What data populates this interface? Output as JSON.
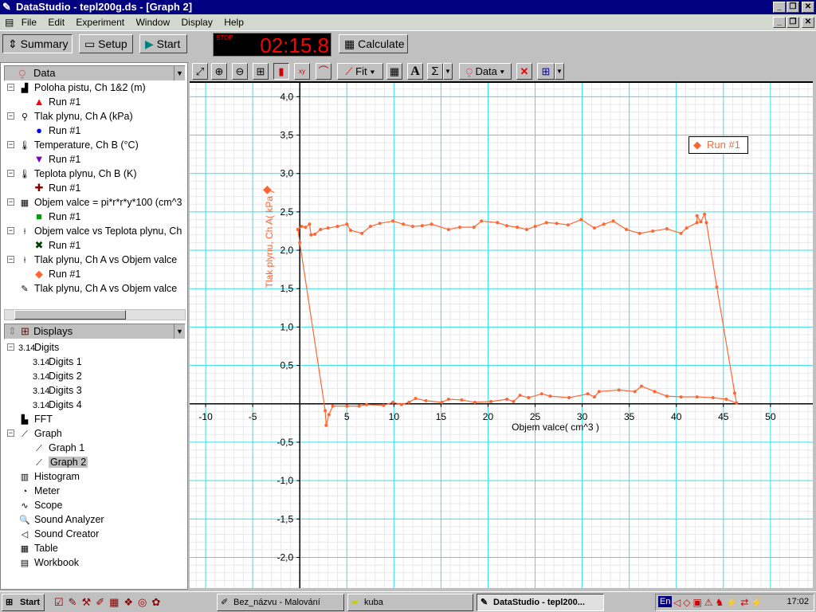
{
  "window": {
    "title": "DataStudio - tepl200g.ds - [Graph 2]",
    "min": "_",
    "restore": "❐",
    "close": "✕"
  },
  "menu": [
    "File",
    "Edit",
    "Experiment",
    "Window",
    "Display",
    "Help"
  ],
  "toolbar": {
    "summary": "Summary",
    "setup": "Setup",
    "start": "Start",
    "stop_label": "STOP",
    "timer": "02:15.8",
    "calculate": "Calculate"
  },
  "data_panel": {
    "header": "Data",
    "items": [
      {
        "label": "Poloha pistu, Ch 1&2 (m)",
        "run": "Run #1",
        "run_color": "#ff0000",
        "marker": "triangle"
      },
      {
        "label": "Tlak plynu, Ch A (kPa)",
        "run": "Run #1",
        "run_color": "#0000ff",
        "marker": "circle"
      },
      {
        "label": "Temperature, Ch B (°C)",
        "run": "Run #1",
        "run_color": "#8000c0",
        "marker": "triangle-down"
      },
      {
        "label": "Teplota plynu, Ch B (K)",
        "run": "Run #1",
        "run_color": "#800000",
        "marker": "plus"
      },
      {
        "label": "Objem valce = pi*r*r*y*100 (cm^3",
        "run": "Run #1",
        "run_color": "#00a000",
        "marker": "square"
      },
      {
        "label": "Objem valce vs Teplota plynu, Ch",
        "run": "Run #1",
        "run_color": "#004000",
        "marker": "x"
      },
      {
        "label": "Tlak plynu, Ch A vs Objem valce",
        "run": "Run #1",
        "run_color": "#ff6633",
        "marker": "diamond"
      },
      {
        "label": "Tlak plynu, Ch A vs Objem valce"
      }
    ]
  },
  "displays_panel": {
    "header": "Displays",
    "digits": "Digits",
    "digits_children": [
      "Digits 1",
      "Digits 2",
      "Digits 3",
      "Digits 4"
    ],
    "fft": "FFT",
    "graph": "Graph",
    "graph_children": [
      "Graph 1",
      "Graph 2"
    ],
    "selected": "Graph 2",
    "others": [
      "Histogram",
      "Meter",
      "Scope",
      "Sound Analyzer",
      "Sound Creator",
      "Table",
      "Workbook"
    ]
  },
  "graph_toolbar": {
    "fit": "Fit",
    "data": "Data",
    "sigma": "Σ",
    "text": "A"
  },
  "legend": {
    "label": "Run #1"
  },
  "chart_data": {
    "type": "scatter-line",
    "xlabel": "Objem valce( cm^3 )",
    "ylabel": "Tlak plynu, Ch A( kPa )",
    "xlim": [
      -11.7,
      54.5
    ],
    "ylim": [
      -2.4,
      4.18
    ],
    "xticks": [
      -10,
      -5,
      5,
      10,
      15,
      20,
      25,
      30,
      35,
      40,
      45,
      50
    ],
    "yticks": [
      "4,0",
      "3,5",
      "3,0",
      "2,5",
      "2,0",
      "1,5",
      "1,0",
      "0,5",
      "-0,5",
      "-1,0",
      "-1,5",
      "-2,0"
    ],
    "ytick_values": [
      4,
      3.5,
      3,
      2.5,
      2,
      1.5,
      1,
      0.5,
      -0.5,
      -1,
      -1.5,
      -2
    ],
    "grid": true,
    "legend_position": "top-right",
    "series": [
      {
        "name": "Run #1",
        "color": "#ff6633",
        "points": [
          [
            -0.2,
            2.27
          ],
          [
            0.2,
            2.31
          ],
          [
            0.6,
            2.3
          ],
          [
            1.04,
            2.34
          ],
          [
            1.2,
            2.2
          ],
          [
            1.6,
            2.21
          ],
          [
            2.2,
            2.27
          ],
          [
            3,
            2.29
          ],
          [
            4,
            2.31
          ],
          [
            5,
            2.34
          ],
          [
            5.4,
            2.26
          ],
          [
            6.6,
            2.22
          ],
          [
            7.5,
            2.31
          ],
          [
            8.5,
            2.35
          ],
          [
            9.9,
            2.38
          ],
          [
            11,
            2.34
          ],
          [
            12,
            2.31
          ],
          [
            13,
            2.32
          ],
          [
            14,
            2.34
          ],
          [
            15.8,
            2.27
          ],
          [
            17,
            2.3
          ],
          [
            18.5,
            2.3
          ],
          [
            19.3,
            2.38
          ],
          [
            21,
            2.36
          ],
          [
            22,
            2.32
          ],
          [
            23.1,
            2.3
          ],
          [
            24.1,
            2.27
          ],
          [
            25,
            2.31
          ],
          [
            26.2,
            2.36
          ],
          [
            27.3,
            2.35
          ],
          [
            28.5,
            2.33
          ],
          [
            29.9,
            2.4
          ],
          [
            31.3,
            2.29
          ],
          [
            32.3,
            2.34
          ],
          [
            33.3,
            2.38
          ],
          [
            34.7,
            2.27
          ],
          [
            36.1,
            2.22
          ],
          [
            37.5,
            2.25
          ],
          [
            39,
            2.28
          ],
          [
            40.5,
            2.22
          ],
          [
            41.1,
            2.29
          ],
          [
            42.2,
            2.36
          ],
          [
            42.2,
            2.45
          ],
          [
            42.6,
            2.37
          ],
          [
            43,
            2.47
          ],
          [
            43.2,
            2.36
          ],
          [
            44.3,
            1.52
          ],
          [
            46.2,
            0.14
          ],
          [
            46.4,
            0.01
          ],
          [
            45.3,
            0.06
          ],
          [
            43.9,
            0.08
          ],
          [
            42.2,
            0.09
          ],
          [
            40.5,
            0.09
          ],
          [
            39,
            0.1
          ],
          [
            37.7,
            0.16
          ],
          [
            36.3,
            0.23
          ],
          [
            35.6,
            0.16
          ],
          [
            33.9,
            0.18
          ],
          [
            31.8,
            0.16
          ],
          [
            31.3,
            0.09
          ],
          [
            30.6,
            0.13
          ],
          [
            28.6,
            0.08
          ],
          [
            26.6,
            0.1
          ],
          [
            25.7,
            0.13
          ],
          [
            24.3,
            0.08
          ],
          [
            23.4,
            0.11
          ],
          [
            22.7,
            0.03
          ],
          [
            22,
            0.06
          ],
          [
            20.3,
            0.03
          ],
          [
            18.6,
            0.02
          ],
          [
            17.2,
            0.05
          ],
          [
            15.8,
            0.06
          ],
          [
            15.1,
            0.02
          ],
          [
            13.4,
            0.04
          ],
          [
            12.3,
            0.07
          ],
          [
            11.6,
            0.02
          ],
          [
            10.8,
            -0.01
          ],
          [
            9.9,
            0.02
          ],
          [
            8.9,
            -0.02
          ],
          [
            7.1,
            -0.01
          ],
          [
            6.3,
            -0.03
          ],
          [
            5,
            -0.03
          ],
          [
            3.5,
            -0.03
          ],
          [
            3.1,
            -0.14
          ],
          [
            2.8,
            -0.28
          ],
          [
            2.7,
            -0.09
          ],
          [
            0,
            2.1
          ],
          [
            -0.2,
            2.27
          ]
        ]
      }
    ]
  },
  "taskbar": {
    "start": "Start",
    "tasks": [
      "Bez_názvu - Malování",
      "kuba",
      "DataStudio - tepl200..."
    ],
    "tray_lang": "En",
    "clock": "17:02"
  }
}
